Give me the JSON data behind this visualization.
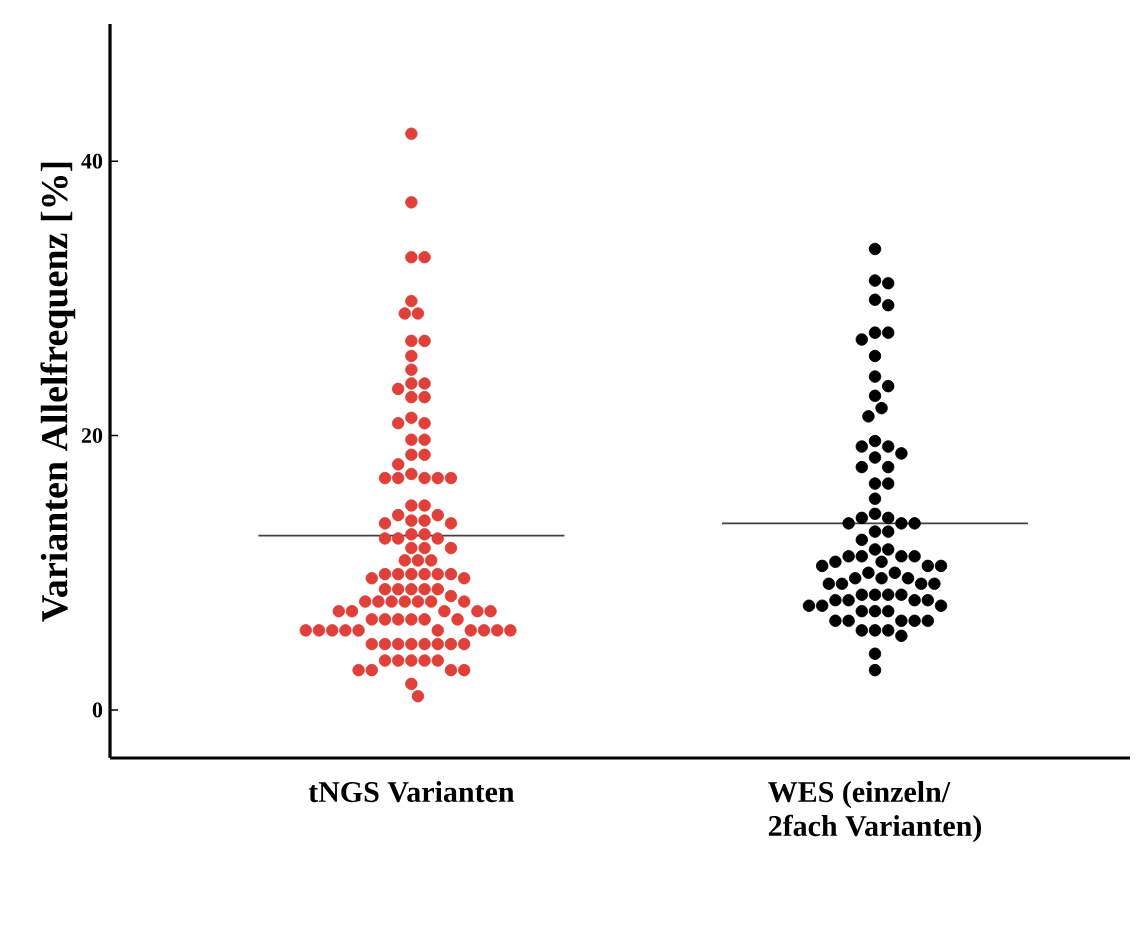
{
  "chart_data": {
    "type": "scatter",
    "ylabel": "Varianten Allelfrequenz [%]",
    "categories": [
      "tNGS Varianten",
      "WES (einzeln/ 2fach Varianten)"
    ],
    "ylim": [
      -3.5,
      50
    ],
    "yticks": [
      0,
      20,
      40
    ],
    "marker": "circle",
    "grid": false,
    "series": [
      {
        "color": "#e0403a",
        "x": [
          "tNGS Varianten",
          "tNGS Varianten",
          "tNGS Varianten",
          "tNGS Varianten",
          "tNGS Varianten",
          "tNGS Varianten",
          "tNGS Varianten",
          "tNGS Varianten",
          "tNGS Varianten",
          "tNGS Varianten",
          "tNGS Varianten",
          "tNGS Varianten",
          "tNGS Varianten",
          "tNGS Varianten",
          "tNGS Varianten",
          "tNGS Varianten",
          "tNGS Varianten",
          "tNGS Varianten",
          "tNGS Varianten",
          "tNGS Varianten",
          "tNGS Varianten",
          "tNGS Varianten",
          "tNGS Varianten",
          "tNGS Varianten",
          "tNGS Varianten",
          "tNGS Varianten",
          "tNGS Varianten",
          "tNGS Varianten",
          "tNGS Varianten",
          "tNGS Varianten",
          "tNGS Varianten",
          "tNGS Varianten",
          "tNGS Varianten",
          "tNGS Varianten",
          "tNGS Varianten",
          "tNGS Varianten",
          "tNGS Varianten",
          "tNGS Varianten",
          "tNGS Varianten",
          "tNGS Varianten",
          "tNGS Varianten",
          "tNGS Varianten",
          "tNGS Varianten",
          "tNGS Varianten",
          "tNGS Varianten",
          "tNGS Varianten",
          "tNGS Varianten",
          "tNGS Varianten",
          "tNGS Varianten",
          "tNGS Varianten",
          "tNGS Varianten",
          "tNGS Varianten",
          "tNGS Varianten",
          "tNGS Varianten",
          "tNGS Varianten",
          "tNGS Varianten",
          "tNGS Varianten",
          "tNGS Varianten",
          "tNGS Varianten",
          "tNGS Varianten",
          "tNGS Varianten",
          "tNGS Varianten",
          "tNGS Varianten",
          "tNGS Varianten",
          "tNGS Varianten",
          "tNGS Varianten",
          "tNGS Varianten",
          "tNGS Varianten",
          "tNGS Varianten",
          "tNGS Varianten",
          "tNGS Varianten",
          "tNGS Varianten",
          "tNGS Varianten",
          "tNGS Varianten",
          "tNGS Varianten",
          "tNGS Varianten",
          "tNGS Varianten",
          "tNGS Varianten",
          "tNGS Varianten",
          "tNGS Varianten",
          "tNGS Varianten",
          "tNGS Varianten",
          "tNGS Varianten",
          "tNGS Varianten",
          "tNGS Varianten",
          "tNGS Varianten",
          "tNGS Varianten",
          "tNGS Varianten",
          "tNGS Varianten",
          "tNGS Varianten",
          "tNGS Varianten",
          "tNGS Varianten",
          "tNGS Varianten",
          "tNGS Varianten",
          "tNGS Varianten",
          "tNGS Varianten",
          "tNGS Varianten",
          "tNGS Varianten",
          "tNGS Varianten",
          "tNGS Varianten",
          "tNGS Varianten",
          "tNGS Varianten",
          "tNGS Varianten",
          "tNGS Varianten",
          "tNGS Varianten",
          "tNGS Varianten",
          "tNGS Varianten",
          "tNGS Varianten",
          "tNGS Varianten",
          "tNGS Varianten"
        ],
        "values": [
          42,
          37,
          33,
          33,
          29.8,
          28.9,
          28.9,
          26.9,
          26.9,
          25.8,
          24.8,
          23.8,
          23.8,
          23.4,
          22.8,
          22.8,
          21.3,
          20.9,
          20.9,
          19.7,
          19.7,
          18.6,
          18.6,
          17.9,
          17.2,
          16.9,
          16.9,
          16.9,
          16.9,
          16.9,
          14.9,
          14.9,
          14.2,
          14.2,
          13.8,
          13.8,
          13.6,
          13.6,
          12.8,
          12.8,
          12.5,
          12.5,
          12.5,
          11.8,
          11.8,
          11.8,
          10.9,
          10.9,
          10.9,
          9.9,
          9.9,
          9.9,
          9.9,
          9.9,
          9.9,
          9.6,
          9.6,
          8.8,
          8.8,
          8.8,
          8.8,
          8.8,
          8.3,
          7.9,
          7.9,
          7.9,
          7.9,
          7.9,
          7.9,
          7.9,
          7.2,
          7.2,
          7.2,
          7.2,
          7.2,
          6.6,
          6.6,
          6.6,
          6.6,
          6.6,
          6.6,
          5.8,
          5.8,
          5.8,
          5.8,
          5.8,
          5.8,
          5.8,
          5.8,
          5.8,
          5.8,
          4.8,
          4.8,
          4.8,
          4.8,
          4.8,
          4.8,
          4.8,
          4.8,
          3.6,
          3.6,
          3.6,
          3.6,
          3.6,
          2.9,
          2.9,
          2.9,
          2.9,
          1.9,
          1.0
        ]
      },
      {
        "color": "#000000",
        "x": [
          "WES (einzeln/ 2fach Varianten)",
          "WES (einzeln/ 2fach Varianten)",
          "WES (einzeln/ 2fach Varianten)",
          "WES (einzeln/ 2fach Varianten)",
          "WES (einzeln/ 2fach Varianten)",
          "WES (einzeln/ 2fach Varianten)",
          "WES (einzeln/ 2fach Varianten)",
          "WES (einzeln/ 2fach Varianten)",
          "WES (einzeln/ 2fach Varianten)",
          "WES (einzeln/ 2fach Varianten)",
          "WES (einzeln/ 2fach Varianten)",
          "WES (einzeln/ 2fach Varianten)",
          "WES (einzeln/ 2fach Varianten)",
          "WES (einzeln/ 2fach Varianten)",
          "WES (einzeln/ 2fach Varianten)",
          "WES (einzeln/ 2fach Varianten)",
          "WES (einzeln/ 2fach Varianten)",
          "WES (einzeln/ 2fach Varianten)",
          "WES (einzeln/ 2fach Varianten)",
          "WES (einzeln/ 2fach Varianten)",
          "WES (einzeln/ 2fach Varianten)",
          "WES (einzeln/ 2fach Varianten)",
          "WES (einzeln/ 2fach Varianten)",
          "WES (einzeln/ 2fach Varianten)",
          "WES (einzeln/ 2fach Varianten)",
          "WES (einzeln/ 2fach Varianten)",
          "WES (einzeln/ 2fach Varianten)",
          "WES (einzeln/ 2fach Varianten)",
          "WES (einzeln/ 2fach Varianten)",
          "WES (einzeln/ 2fach Varianten)",
          "WES (einzeln/ 2fach Varianten)",
          "WES (einzeln/ 2fach Varianten)",
          "WES (einzeln/ 2fach Varianten)",
          "WES (einzeln/ 2fach Varianten)",
          "WES (einzeln/ 2fach Varianten)",
          "WES (einzeln/ 2fach Varianten)",
          "WES (einzeln/ 2fach Varianten)",
          "WES (einzeln/ 2fach Varianten)",
          "WES (einzeln/ 2fach Varianten)",
          "WES (einzeln/ 2fach Varianten)",
          "WES (einzeln/ 2fach Varianten)",
          "WES (einzeln/ 2fach Varianten)",
          "WES (einzeln/ 2fach Varianten)",
          "WES (einzeln/ 2fach Varianten)",
          "WES (einzeln/ 2fach Varianten)",
          "WES (einzeln/ 2fach Varianten)",
          "WES (einzeln/ 2fach Varianten)",
          "WES (einzeln/ 2fach Varianten)",
          "WES (einzeln/ 2fach Varianten)",
          "WES (einzeln/ 2fach Varianten)",
          "WES (einzeln/ 2fach Varianten)",
          "WES (einzeln/ 2fach Varianten)",
          "WES (einzeln/ 2fach Varianten)",
          "WES (einzeln/ 2fach Varianten)",
          "WES (einzeln/ 2fach Varianten)",
          "WES (einzeln/ 2fach Varianten)",
          "WES (einzeln/ 2fach Varianten)",
          "WES (einzeln/ 2fach Varianten)",
          "WES (einzeln/ 2fach Varianten)",
          "WES (einzeln/ 2fach Varianten)",
          "WES (einzeln/ 2fach Varianten)",
          "WES (einzeln/ 2fach Varianten)",
          "WES (einzeln/ 2fach Varianten)",
          "WES (einzeln/ 2fach Varianten)",
          "WES (einzeln/ 2fach Varianten)",
          "WES (einzeln/ 2fach Varianten)",
          "WES (einzeln/ 2fach Varianten)",
          "WES (einzeln/ 2fach Varianten)",
          "WES (einzeln/ 2fach Varianten)",
          "WES (einzeln/ 2fach Varianten)",
          "WES (einzeln/ 2fach Varianten)",
          "WES (einzeln/ 2fach Varianten)",
          "WES (einzeln/ 2fach Varianten)",
          "WES (einzeln/ 2fach Varianten)",
          "WES (einzeln/ 2fach Varianten)",
          "WES (einzeln/ 2fach Varianten)",
          "WES (einzeln/ 2fach Varianten)",
          "WES (einzeln/ 2fach Varianten)"
        ],
        "values": [
          33.6,
          31.3,
          31.1,
          29.9,
          29.5,
          27.5,
          27.5,
          27.0,
          25.8,
          24.3,
          23.6,
          22.9,
          22.0,
          21.4,
          19.6,
          19.2,
          19.2,
          18.7,
          18.4,
          17.7,
          17.7,
          16.5,
          16.5,
          15.4,
          14.3,
          14.0,
          14.0,
          13.6,
          13.6,
          13.6,
          13.0,
          13.0,
          12.4,
          11.7,
          11.7,
          11.2,
          11.2,
          11.2,
          11.2,
          10.8,
          10.8,
          10.5,
          10.5,
          10.5,
          10.0,
          10.0,
          9.6,
          9.6,
          9.6,
          9.2,
          9.2,
          9.2,
          9.2,
          8.4,
          8.4,
          8.4,
          8.4,
          8.0,
          8.0,
          8.0,
          8.0,
          7.6,
          7.6,
          7.6,
          7.2,
          7.2,
          7.2,
          6.5,
          6.5,
          6.5,
          6.5,
          6.5,
          5.8,
          5.8,
          5.8,
          5.4,
          4.1,
          2.9
        ]
      }
    ],
    "ref_lines": [
      {
        "axis": "y",
        "value": 12.7,
        "color": "#404040"
      },
      {
        "axis": "y",
        "value": 13.6,
        "color": "#404040"
      }
    ]
  }
}
